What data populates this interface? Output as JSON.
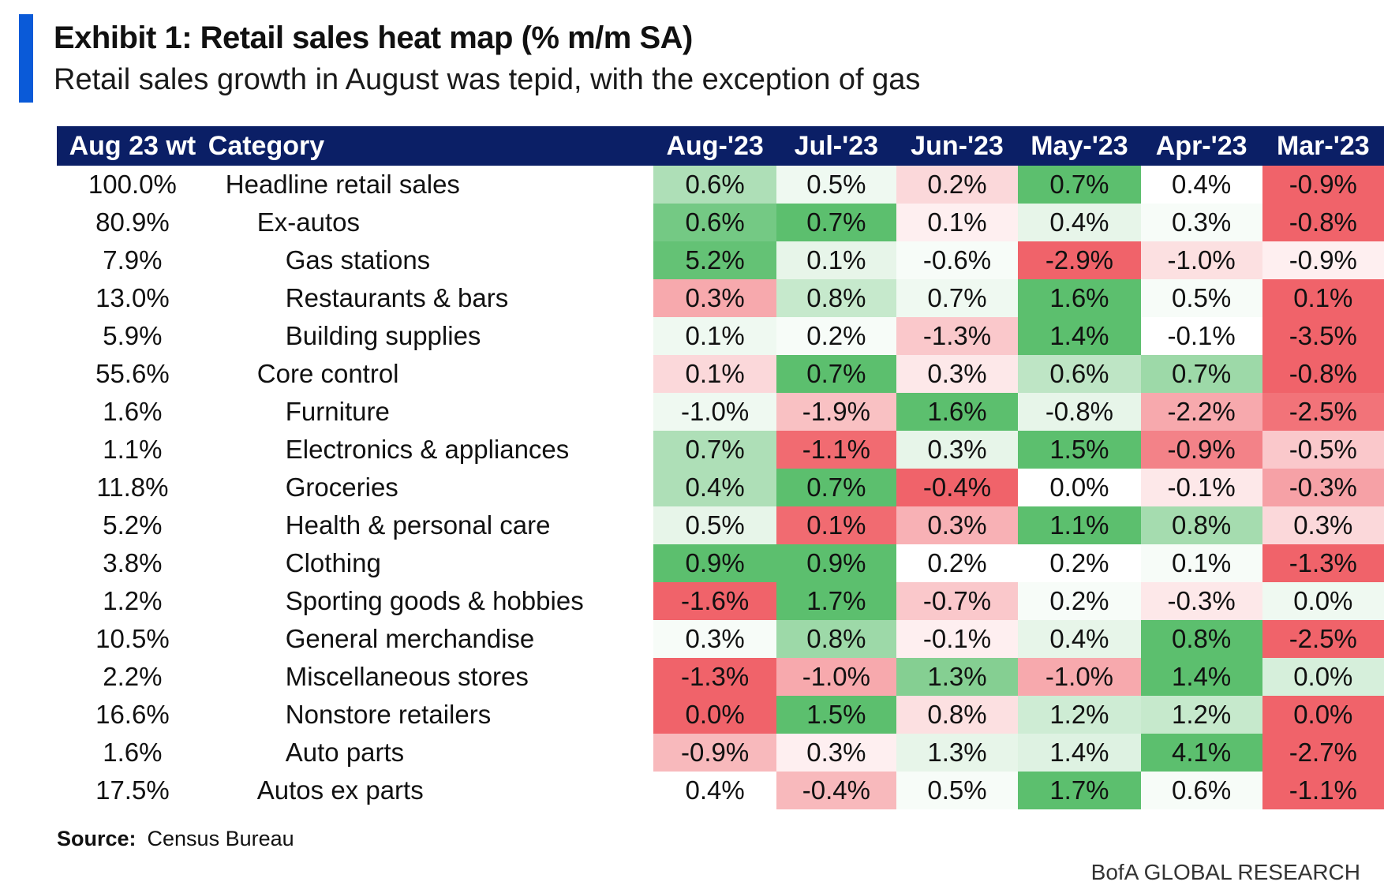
{
  "title": "Exhibit 1: Retail sales heat map (% m/m SA)",
  "subtitle": "Retail sales growth in August was tepid, with the exception of gas",
  "source_label": "Source:",
  "source_text": "Census Bureau",
  "brand": "BofA GLOBAL RESEARCH",
  "colors": {
    "accent": "#0a5ad8",
    "header_bg": "#0b1f66",
    "positive": "#5cbf6e",
    "negative": "#f0636a",
    "neutral": "#ffffff"
  },
  "chart_data": {
    "type": "heatmap",
    "columns": [
      "Aug 23 wt",
      "Category",
      "Aug-'23",
      "Jul-'23",
      "Jun-'23",
      "May-'23",
      "Apr-'23",
      "Mar-'23"
    ],
    "rows": [
      {
        "weight": "100.0%",
        "category": "Headline retail sales",
        "level": 0,
        "values": [
          "0.6%",
          "0.5%",
          "0.2%",
          "0.7%",
          "0.4%",
          "-0.9%"
        ]
      },
      {
        "weight": "80.9%",
        "category": "Ex-autos",
        "level": 1,
        "values": [
          "0.6%",
          "0.7%",
          "0.1%",
          "0.4%",
          "0.3%",
          "-0.8%"
        ]
      },
      {
        "weight": "7.9%",
        "category": "Gas stations",
        "level": 2,
        "values": [
          "5.2%",
          "0.1%",
          "-0.6%",
          "-2.9%",
          "-1.0%",
          "-0.9%"
        ]
      },
      {
        "weight": "13.0%",
        "category": "Restaurants & bars",
        "level": 2,
        "values": [
          "0.3%",
          "0.8%",
          "0.7%",
          "1.6%",
          "0.5%",
          "0.1%"
        ]
      },
      {
        "weight": "5.9%",
        "category": "Building supplies",
        "level": 2,
        "values": [
          "0.1%",
          "0.2%",
          "-1.3%",
          "1.4%",
          "-0.1%",
          "-3.5%"
        ]
      },
      {
        "weight": "55.6%",
        "category": "Core control",
        "level": 1,
        "values": [
          "0.1%",
          "0.7%",
          "0.3%",
          "0.6%",
          "0.7%",
          "-0.8%"
        ]
      },
      {
        "weight": "1.6%",
        "category": "Furniture",
        "level": 2,
        "values": [
          "-1.0%",
          "-1.9%",
          "1.6%",
          "-0.8%",
          "-2.2%",
          "-2.5%"
        ]
      },
      {
        "weight": "1.1%",
        "category": "Electronics & appliances",
        "level": 2,
        "values": [
          "0.7%",
          "-1.1%",
          "0.3%",
          "1.5%",
          "-0.9%",
          "-0.5%"
        ]
      },
      {
        "weight": "11.8%",
        "category": "Groceries",
        "level": 2,
        "values": [
          "0.4%",
          "0.7%",
          "-0.4%",
          "0.0%",
          "-0.1%",
          "-0.3%"
        ]
      },
      {
        "weight": "5.2%",
        "category": "Health & personal care",
        "level": 2,
        "values": [
          "0.5%",
          "0.1%",
          "0.3%",
          "1.1%",
          "0.8%",
          "0.3%"
        ]
      },
      {
        "weight": "3.8%",
        "category": "Clothing",
        "level": 2,
        "values": [
          "0.9%",
          "0.9%",
          "0.2%",
          "0.2%",
          "0.1%",
          "-1.3%"
        ]
      },
      {
        "weight": "1.2%",
        "category": "Sporting goods & hobbies",
        "level": 2,
        "values": [
          "-1.6%",
          "1.7%",
          "-0.7%",
          "0.2%",
          "-0.3%",
          "0.0%"
        ]
      },
      {
        "weight": "10.5%",
        "category": "General merchandise",
        "level": 2,
        "values": [
          "0.3%",
          "0.8%",
          "-0.1%",
          "0.4%",
          "0.8%",
          "-2.5%"
        ]
      },
      {
        "weight": "2.2%",
        "category": "Miscellaneous stores",
        "level": 2,
        "values": [
          "-1.3%",
          "-1.0%",
          "1.3%",
          "-1.0%",
          "1.4%",
          "0.0%"
        ]
      },
      {
        "weight": "16.6%",
        "category": "Nonstore retailers",
        "level": 2,
        "values": [
          "0.0%",
          "1.5%",
          "0.8%",
          "1.2%",
          "1.2%",
          "0.0%"
        ]
      },
      {
        "weight": "1.6%",
        "category": "Auto parts",
        "level": 2,
        "values": [
          "-0.9%",
          "0.3%",
          "1.3%",
          "1.4%",
          "4.1%",
          "-2.7%"
        ]
      },
      {
        "weight": "17.5%",
        "category": "Autos ex parts",
        "level": 1,
        "values": [
          "0.4%",
          "-0.4%",
          "0.5%",
          "1.7%",
          "0.6%",
          "-1.1%"
        ]
      }
    ],
    "cell_shades": [
      [
        0.5,
        0.1,
        -0.25,
        1,
        0,
        -1
      ],
      [
        0.85,
        1,
        -0.1,
        0.15,
        0.05,
        -1
      ],
      [
        0.95,
        0.15,
        0.05,
        -1,
        -0.2,
        -0.1
      ],
      [
        -0.55,
        0.35,
        0.1,
        1,
        0.05,
        -1
      ],
      [
        0.1,
        0.05,
        -0.35,
        1,
        0,
        -1
      ],
      [
        -0.25,
        1,
        -0.15,
        0.4,
        0.6,
        -1
      ],
      [
        0.1,
        -0.4,
        1,
        0.15,
        -0.55,
        -0.9
      ],
      [
        0.5,
        -0.95,
        0.15,
        1,
        -0.8,
        -0.35
      ],
      [
        0.5,
        1,
        -1,
        0,
        -0.15,
        -0.6
      ],
      [
        0.15,
        -0.95,
        -0.5,
        1,
        0.55,
        -0.25
      ],
      [
        1,
        1,
        0,
        0,
        0.05,
        -1
      ],
      [
        -1,
        1,
        -0.35,
        0.05,
        -0.15,
        0.1
      ],
      [
        0.05,
        0.6,
        -0.1,
        0.15,
        1,
        -1
      ],
      [
        -1,
        -0.55,
        0.75,
        -0.55,
        1,
        0.25
      ],
      [
        -1,
        1,
        -0.2,
        0.3,
        0.35,
        -1
      ],
      [
        -0.45,
        -0.1,
        0.15,
        0.2,
        1,
        -1
      ],
      [
        0,
        -0.45,
        0.05,
        1,
        0.05,
        -1
      ]
    ]
  }
}
